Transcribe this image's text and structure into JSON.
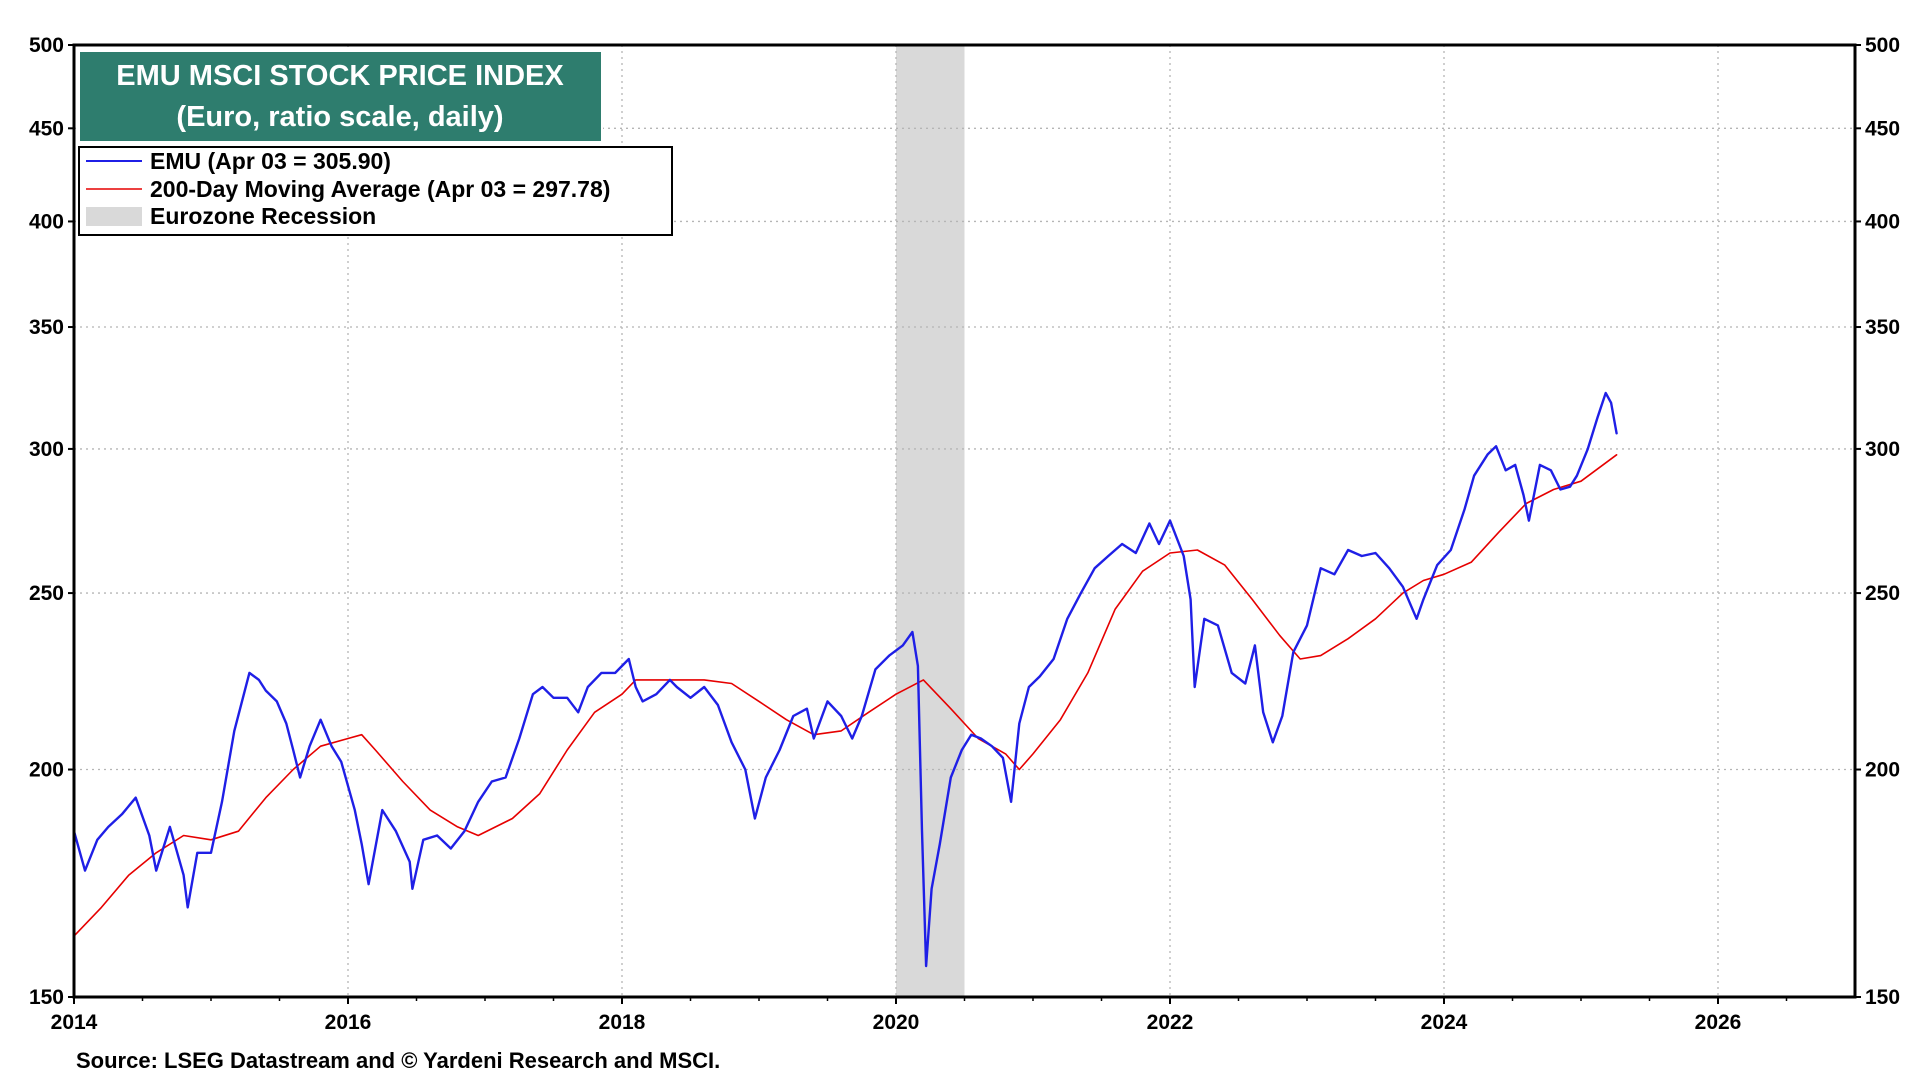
{
  "chart_data": {
    "type": "line",
    "title": "EMU MSCI STOCK PRICE INDEX",
    "subtitle": "(Euro, ratio scale, daily)",
    "scale": "log",
    "ylim": [
      150,
      500
    ],
    "xlim": [
      2014,
      2027
    ],
    "y_ticks": [
      150,
      200,
      250,
      300,
      350,
      400,
      450,
      500
    ],
    "y_tick_labels": [
      "150",
      "200",
      "250",
      "300",
      "350",
      "400",
      "450",
      "500"
    ],
    "x_ticks": [
      2014,
      2016,
      2018,
      2020,
      2022,
      2024,
      2026
    ],
    "x_tick_labels": [
      "2014",
      "2016",
      "2018",
      "2020",
      "2022",
      "2024",
      "2026"
    ],
    "grid": true,
    "legend_position": "top-left",
    "legend": [
      {
        "label": "EMU (Apr 03 = 305.90)",
        "color": "#1f1fe6",
        "kind": "line"
      },
      {
        "label": "200-Day Moving Average (Apr 03 = 297.78)",
        "color": "#e60000",
        "kind": "line"
      },
      {
        "label": "Eurozone Recession",
        "color": "#d9d9d9",
        "kind": "band"
      }
    ],
    "recession_bands": [
      {
        "start": 2020.0,
        "end": 2020.5
      }
    ],
    "series": [
      {
        "name": "EMU",
        "color": "#1f1fe6",
        "points": [
          [
            2014.0,
            185
          ],
          [
            2014.08,
            176
          ],
          [
            2014.17,
            183
          ],
          [
            2014.25,
            186
          ],
          [
            2014.35,
            189
          ],
          [
            2014.45,
            193
          ],
          [
            2014.55,
            184
          ],
          [
            2014.6,
            176
          ],
          [
            2014.7,
            186
          ],
          [
            2014.8,
            175
          ],
          [
            2014.83,
            168
          ],
          [
            2014.9,
            180
          ],
          [
            2015.0,
            180
          ],
          [
            2015.08,
            192
          ],
          [
            2015.17,
            210
          ],
          [
            2015.28,
            226
          ],
          [
            2015.35,
            224
          ],
          [
            2015.4,
            221
          ],
          [
            2015.48,
            218
          ],
          [
            2015.55,
            212
          ],
          [
            2015.6,
            205
          ],
          [
            2015.65,
            198
          ],
          [
            2015.72,
            206
          ],
          [
            2015.8,
            213
          ],
          [
            2015.88,
            206
          ],
          [
            2015.95,
            202
          ],
          [
            2016.05,
            190
          ],
          [
            2016.1,
            182
          ],
          [
            2016.15,
            173
          ],
          [
            2016.25,
            190
          ],
          [
            2016.35,
            185
          ],
          [
            2016.45,
            178
          ],
          [
            2016.47,
            172
          ],
          [
            2016.55,
            183
          ],
          [
            2016.65,
            184
          ],
          [
            2016.75,
            181
          ],
          [
            2016.85,
            185
          ],
          [
            2016.95,
            192
          ],
          [
            2017.05,
            197
          ],
          [
            2017.15,
            198
          ],
          [
            2017.25,
            208
          ],
          [
            2017.35,
            220
          ],
          [
            2017.42,
            222
          ],
          [
            2017.5,
            219
          ],
          [
            2017.6,
            219
          ],
          [
            2017.68,
            215
          ],
          [
            2017.75,
            222
          ],
          [
            2017.85,
            226
          ],
          [
            2017.95,
            226
          ],
          [
            2018.05,
            230
          ],
          [
            2018.1,
            222
          ],
          [
            2018.15,
            218
          ],
          [
            2018.25,
            220
          ],
          [
            2018.35,
            224
          ],
          [
            2018.4,
            222
          ],
          [
            2018.5,
            219
          ],
          [
            2018.6,
            222
          ],
          [
            2018.7,
            217
          ],
          [
            2018.8,
            207
          ],
          [
            2018.9,
            200
          ],
          [
            2018.97,
            188
          ],
          [
            2019.05,
            198
          ],
          [
            2019.15,
            205
          ],
          [
            2019.25,
            214
          ],
          [
            2019.35,
            216
          ],
          [
            2019.4,
            208
          ],
          [
            2019.5,
            218
          ],
          [
            2019.6,
            214
          ],
          [
            2019.68,
            208
          ],
          [
            2019.75,
            214
          ],
          [
            2019.85,
            227
          ],
          [
            2019.95,
            231
          ],
          [
            2020.05,
            234
          ],
          [
            2020.12,
            238
          ],
          [
            2020.16,
            228
          ],
          [
            2020.19,
            185
          ],
          [
            2020.22,
            156
          ],
          [
            2020.26,
            172
          ],
          [
            2020.32,
            182
          ],
          [
            2020.4,
            198
          ],
          [
            2020.48,
            205
          ],
          [
            2020.55,
            209
          ],
          [
            2020.62,
            208
          ],
          [
            2020.7,
            206
          ],
          [
            2020.78,
            203
          ],
          [
            2020.84,
            192
          ],
          [
            2020.9,
            212
          ],
          [
            2020.97,
            222
          ],
          [
            2021.05,
            225
          ],
          [
            2021.15,
            230
          ],
          [
            2021.25,
            242
          ],
          [
            2021.35,
            250
          ],
          [
            2021.45,
            258
          ],
          [
            2021.55,
            262
          ],
          [
            2021.65,
            266
          ],
          [
            2021.75,
            263
          ],
          [
            2021.85,
            273
          ],
          [
            2021.92,
            266
          ],
          [
            2022.0,
            274
          ],
          [
            2022.1,
            262
          ],
          [
            2022.15,
            248
          ],
          [
            2022.18,
            222
          ],
          [
            2022.25,
            242
          ],
          [
            2022.35,
            240
          ],
          [
            2022.45,
            226
          ],
          [
            2022.55,
            223
          ],
          [
            2022.62,
            234
          ],
          [
            2022.68,
            215
          ],
          [
            2022.75,
            207
          ],
          [
            2022.82,
            214
          ],
          [
            2022.9,
            232
          ],
          [
            2023.0,
            240
          ],
          [
            2023.1,
            258
          ],
          [
            2023.2,
            256
          ],
          [
            2023.3,
            264
          ],
          [
            2023.4,
            262
          ],
          [
            2023.5,
            263
          ],
          [
            2023.6,
            258
          ],
          [
            2023.7,
            252
          ],
          [
            2023.8,
            242
          ],
          [
            2023.85,
            248
          ],
          [
            2023.95,
            259
          ],
          [
            2024.05,
            264
          ],
          [
            2024.15,
            278
          ],
          [
            2024.22,
            290
          ],
          [
            2024.32,
            298
          ],
          [
            2024.38,
            301
          ],
          [
            2024.45,
            292
          ],
          [
            2024.52,
            294
          ],
          [
            2024.58,
            283
          ],
          [
            2024.62,
            274
          ],
          [
            2024.7,
            294
          ],
          [
            2024.78,
            292
          ],
          [
            2024.85,
            285
          ],
          [
            2024.92,
            286
          ],
          [
            2024.97,
            290
          ],
          [
            2025.05,
            300
          ],
          [
            2025.12,
            312
          ],
          [
            2025.18,
            322
          ],
          [
            2025.22,
            318
          ],
          [
            2025.26,
            306
          ]
        ]
      },
      {
        "name": "200-Day Moving Average",
        "color": "#e60000",
        "points": [
          [
            2014.0,
            162
          ],
          [
            2014.2,
            168
          ],
          [
            2014.4,
            175
          ],
          [
            2014.6,
            180
          ],
          [
            2014.8,
            184
          ],
          [
            2015.0,
            183
          ],
          [
            2015.2,
            185
          ],
          [
            2015.4,
            193
          ],
          [
            2015.6,
            200
          ],
          [
            2015.8,
            206
          ],
          [
            2016.0,
            208
          ],
          [
            2016.1,
            209
          ],
          [
            2016.2,
            205
          ],
          [
            2016.4,
            197
          ],
          [
            2016.6,
            190
          ],
          [
            2016.8,
            186
          ],
          [
            2016.95,
            184
          ],
          [
            2017.2,
            188
          ],
          [
            2017.4,
            194
          ],
          [
            2017.6,
            205
          ],
          [
            2017.8,
            215
          ],
          [
            2018.0,
            220
          ],
          [
            2018.1,
            224
          ],
          [
            2018.4,
            224
          ],
          [
            2018.6,
            224
          ],
          [
            2018.8,
            223
          ],
          [
            2019.0,
            218
          ],
          [
            2019.2,
            213
          ],
          [
            2019.4,
            209
          ],
          [
            2019.6,
            210
          ],
          [
            2019.8,
            215
          ],
          [
            2020.0,
            220
          ],
          [
            2020.2,
            224
          ],
          [
            2020.4,
            216
          ],
          [
            2020.6,
            208
          ],
          [
            2020.8,
            204
          ],
          [
            2020.9,
            200
          ],
          [
            2021.0,
            204
          ],
          [
            2021.2,
            213
          ],
          [
            2021.4,
            226
          ],
          [
            2021.6,
            245
          ],
          [
            2021.8,
            257
          ],
          [
            2022.0,
            263
          ],
          [
            2022.2,
            264
          ],
          [
            2022.4,
            259
          ],
          [
            2022.6,
            248
          ],
          [
            2022.8,
            237
          ],
          [
            2022.95,
            230
          ],
          [
            2023.1,
            231
          ],
          [
            2023.3,
            236
          ],
          [
            2023.5,
            242
          ],
          [
            2023.7,
            250
          ],
          [
            2023.85,
            254
          ],
          [
            2024.0,
            256
          ],
          [
            2024.2,
            260
          ],
          [
            2024.4,
            270
          ],
          [
            2024.6,
            280
          ],
          [
            2024.8,
            285
          ],
          [
            2025.0,
            288
          ],
          [
            2025.26,
            297.78
          ]
        ]
      }
    ]
  },
  "source": "Source: LSEG Datastream and © Yardeni Research and MSCI."
}
